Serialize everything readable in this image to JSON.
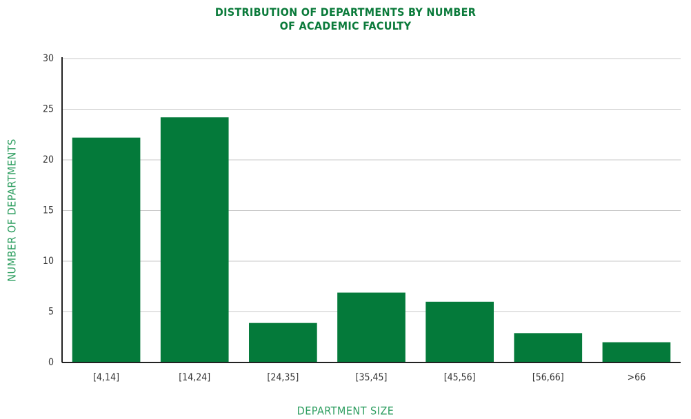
{
  "chart_data": {
    "type": "bar",
    "title": "DISTRIBUTION OF DEPARTMENTS BY NUMBER OF ACADEMIC FACULTY",
    "xlabel": "DEPARTMENT SIZE",
    "ylabel": "NUMBER OF DEPARTMENTS",
    "categories": [
      "[4,14]",
      "[14,24]",
      "[24,35]",
      "[35,45]",
      "[45,56]",
      "[56,66]",
      ">66"
    ],
    "values": [
      22.2,
      24.2,
      3.9,
      6.9,
      6,
      2.9,
      2
    ],
    "color": "#047a3a",
    "ylim": [
      0,
      30
    ],
    "yticks": [
      0,
      5,
      10,
      15,
      20,
      25,
      30
    ],
    "grid": true
  }
}
